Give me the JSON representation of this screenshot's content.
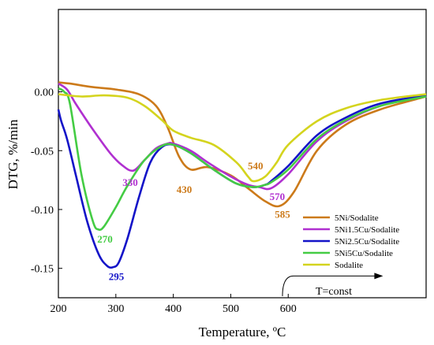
{
  "chart_data": {
    "type": "line",
    "xlabel": "Temperature, ºC",
    "ylabel": "DTG, %/min",
    "xlim": [
      200,
      840
    ],
    "ylim": [
      -0.175,
      0.07
    ],
    "xticks": [
      200,
      300,
      400,
      500,
      600
    ],
    "yticks": [
      0.0,
      -0.05,
      -0.1,
      -0.15
    ],
    "ytick_labels": [
      "0.00",
      "-0.05",
      "-0.10",
      "-0.15"
    ],
    "legend_position": "bottom-right",
    "series": [
      {
        "name": "5Ni/Sodalite",
        "color": "#CC7A1A",
        "x": [
          200,
          220,
          260,
          300,
          340,
          370,
          390,
          410,
          430,
          460,
          500,
          530,
          560,
          585,
          610,
          650,
          700,
          760,
          840
        ],
        "y": [
          0.008,
          0.007,
          0.004,
          0.002,
          -0.002,
          -0.012,
          -0.03,
          -0.055,
          -0.066,
          -0.064,
          -0.071,
          -0.082,
          -0.093,
          -0.097,
          -0.085,
          -0.05,
          -0.028,
          -0.015,
          -0.004
        ]
      },
      {
        "name": "5Ni1.5Cu/Sodalite",
        "color": "#B030D0",
        "x": [
          200,
          215,
          230,
          260,
          290,
          310,
          330,
          350,
          370,
          390,
          400,
          430,
          460,
          500,
          530,
          550,
          570,
          600,
          650,
          700,
          760,
          840
        ],
        "y": [
          0.007,
          0.002,
          -0.01,
          -0.032,
          -0.052,
          -0.062,
          -0.067,
          -0.058,
          -0.048,
          -0.044,
          -0.044,
          -0.05,
          -0.06,
          -0.072,
          -0.079,
          -0.081,
          -0.082,
          -0.07,
          -0.042,
          -0.025,
          -0.012,
          -0.003
        ]
      },
      {
        "name": "5Ni2.5Cu/Sodalite",
        "color": "#1414C8",
        "x": [
          200,
          205,
          215,
          230,
          250,
          270,
          285,
          295,
          305,
          320,
          340,
          360,
          380,
          400,
          430,
          470,
          510,
          540,
          560,
          570,
          600,
          650,
          700,
          760,
          840
        ],
        "y": [
          -0.015,
          -0.025,
          -0.04,
          -0.07,
          -0.11,
          -0.138,
          -0.148,
          -0.149,
          -0.145,
          -0.125,
          -0.09,
          -0.06,
          -0.047,
          -0.045,
          -0.052,
          -0.066,
          -0.078,
          -0.081,
          -0.079,
          -0.076,
          -0.063,
          -0.037,
          -0.022,
          -0.01,
          -0.003
        ]
      },
      {
        "name": "5Ni5Cu/Sodalite",
        "color": "#44CC44",
        "x": [
          200,
          210,
          220,
          240,
          260,
          270,
          280,
          300,
          320,
          350,
          380,
          400,
          430,
          470,
          510,
          540,
          560,
          570,
          600,
          650,
          700,
          760,
          840
        ],
        "y": [
          0.003,
          0.0,
          -0.01,
          -0.07,
          -0.11,
          -0.117,
          -0.114,
          -0.098,
          -0.08,
          -0.058,
          -0.046,
          -0.045,
          -0.052,
          -0.066,
          -0.078,
          -0.081,
          -0.079,
          -0.077,
          -0.066,
          -0.04,
          -0.024,
          -0.012,
          -0.004
        ]
      },
      {
        "name": "Sodalite",
        "color": "#D4D41E",
        "x": [
          200,
          240,
          280,
          320,
          350,
          380,
          400,
          430,
          470,
          510,
          530,
          540,
          560,
          580,
          600,
          650,
          700,
          760,
          840
        ],
        "y": [
          -0.002,
          -0.004,
          -0.003,
          -0.005,
          -0.012,
          -0.024,
          -0.033,
          -0.039,
          -0.045,
          -0.06,
          -0.072,
          -0.076,
          -0.072,
          -0.06,
          -0.045,
          -0.025,
          -0.014,
          -0.007,
          -0.002
        ]
      }
    ],
    "annotations": [
      {
        "text": "330",
        "x": 325,
        "y": -0.08,
        "color": "#B030D0"
      },
      {
        "text": "430",
        "x": 419,
        "y": -0.086,
        "color": "#CC7A1A"
      },
      {
        "text": "540",
        "x": 543,
        "y": -0.066,
        "color": "#CC7A1A"
      },
      {
        "text": "570",
        "x": 581,
        "y": -0.092,
        "color": "#B030D0"
      },
      {
        "text": "585",
        "x": 590,
        "y": -0.107,
        "color": "#CC7A1A"
      },
      {
        "text": "270",
        "x": 281,
        "y": -0.128,
        "color": "#44CC44"
      },
      {
        "text": "295",
        "x": 301,
        "y": -0.16,
        "color": "#1414C8"
      }
    ],
    "note": {
      "text": "T=const",
      "x_start": 590,
      "x_end": 765,
      "y": -0.1565
    }
  }
}
